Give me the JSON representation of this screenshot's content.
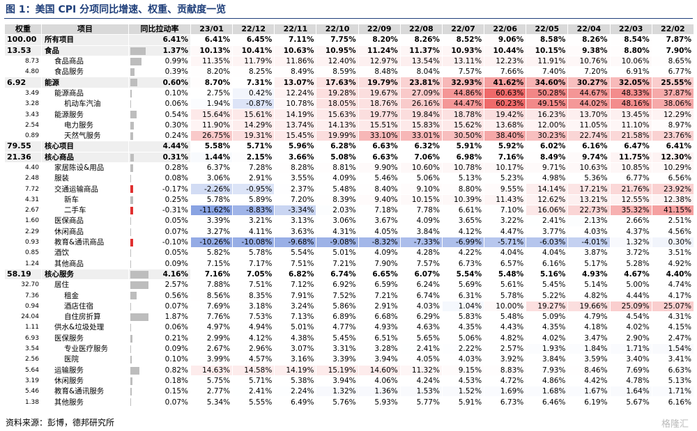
{
  "title": "图 1：美国 CPI 分项同比增速、权重、贡献度一览",
  "header": [
    "权重",
    "项目",
    "同比拉动率",
    "23/01",
    "22/12",
    "22/11",
    "22/10",
    "22/09",
    "22/08",
    "22/07",
    "22/06",
    "22/05",
    "22/04",
    "22/03",
    "22/02"
  ],
  "rows": [
    {
      "weight": "100.00",
      "item": "所有项目",
      "contribution": "6.41%",
      "values": [
        "6.41%",
        "6.45%",
        "7.11%",
        "7.75%",
        "8.20%",
        "8.26%",
        "8.52%",
        "9.06%",
        "8.58%",
        "8.26%",
        "8.54%",
        "7.87%"
      ]
    },
    {
      "weight": "13.53",
      "item": "食品",
      "contribution": "1.37%",
      "values": [
        "10.13%",
        "10.41%",
        "10.63%",
        "10.95%",
        "11.24%",
        "11.37%",
        "10.93%",
        "10.44%",
        "10.15%",
        "9.38%",
        "8.80%",
        "7.90%"
      ]
    },
    {
      "weight": "8.73",
      "item": "食品商品",
      "contribution": "0.99%",
      "values": [
        "11.35%",
        "11.79%",
        "11.86%",
        "12.40%",
        "12.97%",
        "13.54%",
        "13.11%",
        "12.23%",
        "11.91%",
        "10.76%",
        "10.06%",
        "8.65%"
      ]
    },
    {
      "weight": "4.80",
      "item": "食品服务",
      "contribution": "0.39%",
      "values": [
        "8.20%",
        "8.25%",
        "8.49%",
        "8.59%",
        "8.48%",
        "8.04%",
        "7.57%",
        "7.66%",
        "7.40%",
        "7.20%",
        "6.91%",
        "6.77%"
      ]
    },
    {
      "weight": "6.92",
      "item": "能源",
      "contribution": "0.60%",
      "values": [
        "8.70%",
        "7.31%",
        "13.07%",
        "17.63%",
        "19.79%",
        "23.81%",
        "32.93%",
        "41.62%",
        "34.60%",
        "30.27%",
        "32.05%",
        "25.55%"
      ]
    },
    {
      "weight": "3.49",
      "item": "能源商品",
      "contribution": "0.10%",
      "values": [
        "2.75%",
        "0.42%",
        "12.24%",
        "19.28%",
        "19.67%",
        "27.09%",
        "44.86%",
        "60.63%",
        "50.28%",
        "44.67%",
        "48.33%",
        "37.87%"
      ]
    },
    {
      "weight": "3.28",
      "item": "机动车汽油",
      "contribution": "0.06%",
      "values": [
        "1.94%",
        "-0.87%",
        "10.78%",
        "18.05%",
        "18.76%",
        "26.16%",
        "44.47%",
        "60.23%",
        "49.15%",
        "44.02%",
        "48.16%",
        "38.06%"
      ]
    },
    {
      "weight": "3.43",
      "item": "能源服务",
      "contribution": "0.54%",
      "values": [
        "15.64%",
        "15.61%",
        "14.19%",
        "15.63%",
        "19.77%",
        "19.84%",
        "18.78%",
        "19.42%",
        "16.23%",
        "13.70%",
        "13.45%",
        "12.29%"
      ]
    },
    {
      "weight": "2.54",
      "item": "电力服务",
      "contribution": "0.30%",
      "values": [
        "11.90%",
        "14.29%",
        "13.74%",
        "14.13%",
        "15.51%",
        "15.83%",
        "15.62%",
        "13.68%",
        "12.00%",
        "11.05%",
        "11.10%",
        "8.97%"
      ]
    },
    {
      "weight": "0.89",
      "item": "天然气服务",
      "contribution": "0.24%",
      "values": [
        "26.75%",
        "19.31%",
        "15.45%",
        "19.99%",
        "33.10%",
        "33.01%",
        "30.50%",
        "38.40%",
        "30.23%",
        "22.74%",
        "21.58%",
        "23.76%"
      ]
    },
    {
      "weight": "79.55",
      "item": "核心项目",
      "contribution": "4.44%",
      "values": [
        "5.58%",
        "5.71%",
        "5.96%",
        "6.28%",
        "6.63%",
        "6.32%",
        "5.91%",
        "5.92%",
        "6.02%",
        "6.16%",
        "6.47%",
        "6.41%"
      ]
    },
    {
      "weight": "21.36",
      "item": "核心商品",
      "contribution": "0.31%",
      "values": [
        "1.44%",
        "2.15%",
        "3.66%",
        "5.08%",
        "6.63%",
        "7.06%",
        "6.98%",
        "7.16%",
        "8.49%",
        "9.74%",
        "11.75%",
        "12.30%"
      ]
    },
    {
      "weight": "4.40",
      "item": "家居陈设&用品",
      "contribution": "0.28%",
      "values": [
        "6.37%",
        "7.28%",
        "8.28%",
        "8.81%",
        "9.90%",
        "10.60%",
        "10.78%",
        "10.17%",
        "9.71%",
        "10.63%",
        "10.85%",
        "10.29%"
      ]
    },
    {
      "weight": "2.48",
      "item": "服装",
      "contribution": "0.08%",
      "values": [
        "3.06%",
        "2.91%",
        "3.55%",
        "4.09%",
        "5.46%",
        "5.06%",
        "5.13%",
        "5.23%",
        "4.98%",
        "5.36%",
        "6.77%",
        "6.56%"
      ]
    },
    {
      "weight": "7.72",
      "item": "交通运输商品",
      "contribution": "-0.17%",
      "values": [
        "-2.26%",
        "-0.95%",
        "2.37%",
        "5.48%",
        "8.40%",
        "9.10%",
        "8.80%",
        "9.55%",
        "14.14%",
        "17.21%",
        "21.76%",
        "23.92%"
      ]
    },
    {
      "weight": "4.31",
      "item": "新车",
      "contribution": "0.25%",
      "values": [
        "5.78%",
        "5.89%",
        "7.20%",
        "8.39%",
        "9.40%",
        "10.15%",
        "10.39%",
        "11.43%",
        "12.62%",
        "13.21%",
        "12.55%",
        "12.38%"
      ]
    },
    {
      "weight": "2.67",
      "item": "二手车",
      "contribution": "-0.31%",
      "values": [
        "-11.62%",
        "-8.83%",
        "-3.34%",
        "2.03%",
        "7.18%",
        "7.78%",
        "6.61%",
        "7.10%",
        "16.06%",
        "22.73%",
        "35.32%",
        "41.15%"
      ]
    },
    {
      "weight": "1.60",
      "item": "医保商品",
      "contribution": "0.05%",
      "values": [
        "3.39%",
        "3.21%",
        "3.13%",
        "3.06%",
        "3.67%",
        "4.09%",
        "3.65%",
        "3.22%",
        "2.41%",
        "2.13%",
        "2.66%",
        "2.51%"
      ]
    },
    {
      "weight": "2.29",
      "item": "休闲商品",
      "contribution": "0.07%",
      "values": [
        "3.27%",
        "4.11%",
        "3.63%",
        "4.31%",
        "4.05%",
        "3.84%",
        "4.12%",
        "4.47%",
        "3.77%",
        "4.03%",
        "4.37%",
        "4.56%"
      ]
    },
    {
      "weight": "0.93",
      "item": "教育&通讯商品",
      "contribution": "-0.10%",
      "values": [
        "-10.26%",
        "-10.08%",
        "-9.68%",
        "-9.08%",
        "-8.32%",
        "-7.33%",
        "-6.99%",
        "-5.71%",
        "-6.03%",
        "-4.01%",
        "1.32%",
        "0.30%"
      ]
    },
    {
      "weight": "0.85",
      "item": "酒饮",
      "contribution": "0.05%",
      "values": [
        "5.82%",
        "5.78%",
        "5.54%",
        "5.01%",
        "4.09%",
        "4.28%",
        "4.22%",
        "4.04%",
        "4.04%",
        "3.87%",
        "3.72%",
        "3.51%"
      ]
    },
    {
      "weight": "1.24",
      "item": "其他商品",
      "contribution": "0.09%",
      "values": [
        "7.15%",
        "7.17%",
        "7.51%",
        "7.21%",
        "7.90%",
        "7.57%",
        "6.73%",
        "6.57%",
        "6.16%",
        "5.17%",
        "5.28%",
        "4.92%"
      ]
    },
    {
      "weight": "58.19",
      "item": "核心服务",
      "contribution": "4.16%",
      "values": [
        "7.16%",
        "7.05%",
        "6.82%",
        "6.74%",
        "6.65%",
        "6.07%",
        "5.54%",
        "5.48%",
        "5.16%",
        "4.93%",
        "4.67%",
        "4.40%"
      ]
    },
    {
      "weight": "32.70",
      "item": "居住",
      "contribution": "2.57%",
      "values": [
        "7.88%",
        "7.51%",
        "7.12%",
        "6.92%",
        "6.59%",
        "6.24%",
        "5.69%",
        "5.61%",
        "5.45%",
        "5.14%",
        "5.00%",
        "4.74%"
      ]
    },
    {
      "weight": "7.36",
      "item": "租金",
      "contribution": "0.56%",
      "values": [
        "8.56%",
        "8.35%",
        "7.91%",
        "7.52%",
        "7.21%",
        "6.74%",
        "6.31%",
        "5.78%",
        "5.22%",
        "4.82%",
        "4.44%",
        "4.17%"
      ]
    },
    {
      "weight": "0.94",
      "item": "酒店住宿",
      "contribution": "0.07%",
      "values": [
        "7.69%",
        "3.18%",
        "3.24%",
        "5.86%",
        "2.91%",
        "4.03%",
        "1.04%",
        "10.00%",
        "19.27%",
        "19.66%",
        "25.09%",
        "25.07%"
      ]
    },
    {
      "weight": "24.04",
      "item": "自住房折算",
      "contribution": "1.87%",
      "values": [
        "7.76%",
        "7.53%",
        "7.13%",
        "6.89%",
        "6.68%",
        "6.29%",
        "5.83%",
        "5.48%",
        "5.09%",
        "4.79%",
        "4.54%",
        "4.31%"
      ]
    },
    {
      "weight": "1.11",
      "item": "供水&垃圾处理",
      "contribution": "0.06%",
      "values": [
        "4.97%",
        "4.94%",
        "5.01%",
        "4.77%",
        "4.93%",
        "4.63%",
        "4.35%",
        "4.43%",
        "4.35%",
        "4.18%",
        "4.02%",
        "4.15%"
      ]
    },
    {
      "weight": "6.93",
      "item": "医保服务",
      "contribution": "0.21%",
      "values": [
        "2.99%",
        "4.12%",
        "4.38%",
        "5.45%",
        "6.51%",
        "5.65%",
        "5.06%",
        "4.82%",
        "4.02%",
        "3.47%",
        "2.90%",
        "2.47%"
      ]
    },
    {
      "weight": "3.54",
      "item": "专业医疗服务",
      "contribution": "0.09%",
      "values": [
        "2.67%",
        "2.96%",
        "3.07%",
        "3.31%",
        "3.28%",
        "2.41%",
        "2.22%",
        "2.57%",
        "1.93%",
        "1.84%",
        "1.71%",
        "1.54%"
      ]
    },
    {
      "weight": "2.56",
      "item": "医院",
      "contribution": "0.10%",
      "values": [
        "3.99%",
        "4.57%",
        "3.16%",
        "3.39%",
        "3.94%",
        "4.05%",
        "4.03%",
        "3.92%",
        "3.84%",
        "3.59%",
        "3.40%",
        "3.41%"
      ]
    },
    {
      "weight": "5.64",
      "item": "运输服务",
      "contribution": "0.82%",
      "values": [
        "14.63%",
        "14.58%",
        "14.19%",
        "15.19%",
        "14.60%",
        "11.32%",
        "9.15%",
        "8.83%",
        "7.93%",
        "8.46%",
        "7.69%",
        "6.63%"
      ]
    },
    {
      "weight": "3.19",
      "item": "休闲服务",
      "contribution": "0.18%",
      "values": [
        "5.75%",
        "5.71%",
        "5.38%",
        "3.94%",
        "4.06%",
        "4.24%",
        "4.53%",
        "4.72%",
        "4.86%",
        "4.42%",
        "4.78%",
        "5.13%"
      ]
    },
    {
      "weight": "5.46",
      "item": "教育&通讯服务",
      "contribution": "0.15%",
      "values": [
        "2.77%",
        "2.41%",
        "2.24%",
        "1.32%",
        "1.36%",
        "1.53%",
        "1.52%",
        "1.69%",
        "1.68%",
        "1.67%",
        "1.64%",
        "1.71%"
      ]
    },
    {
      "weight": "1.38",
      "item": "其他服务",
      "contribution": "0.07%",
      "values": [
        "5.34%",
        "5.55%",
        "6.49%",
        "5.76%",
        "5.93%",
        "5.77%",
        "5.91%",
        "6.73%",
        "6.46%",
        "6.19%",
        "5.67%",
        "6.16%"
      ]
    }
  ],
  "source": "资料来源：彭博，德邦研究所",
  "watermark": "格隆汇"
}
